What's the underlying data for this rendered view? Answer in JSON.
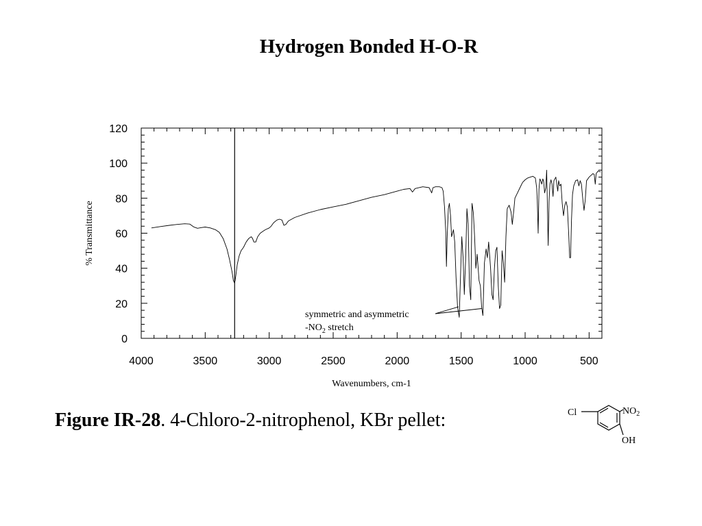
{
  "slide_title": "Hydrogen Bonded H-O-R",
  "caption": {
    "figure_label": "Figure IR-28",
    "text": ".  4-Chloro-2-nitrophenol, KBr pellet:"
  },
  "molecule": {
    "substituent_cl": "Cl",
    "substituent_no2": "NO",
    "substituent_no2_subscript": "2",
    "substituent_oh": "OH"
  },
  "chart_data": {
    "type": "line",
    "xlabel": "Wavenumbers, cm-1",
    "ylabel": "% Transmittance",
    "xlim": [
      4000,
      400
    ],
    "ylim": [
      0,
      120
    ],
    "x_reversed": true,
    "x_ticks": [
      4000,
      3500,
      3000,
      2500,
      2000,
      1500,
      1000,
      500
    ],
    "y_ticks": [
      0,
      20,
      40,
      60,
      80,
      100,
      120
    ],
    "marker_line": {
      "x": 3270
    },
    "annotation": {
      "line1": "symmetric and asymmetric",
      "line2_prefix": "-NO",
      "line2_subscript": "2",
      "line2_suffix": " stretch",
      "arrow_targets": [
        [
          1520,
          18
        ],
        [
          1340,
          17
        ]
      ]
    },
    "series": [
      {
        "points": [
          [
            3920,
            63
          ],
          [
            3850,
            63.8
          ],
          [
            3780,
            64.5
          ],
          [
            3720,
            65
          ],
          [
            3660,
            65.4
          ],
          [
            3620,
            65.2
          ],
          [
            3590,
            63.6
          ],
          [
            3560,
            62.8
          ],
          [
            3530,
            63.2
          ],
          [
            3500,
            63.5
          ],
          [
            3460,
            63
          ],
          [
            3420,
            62
          ],
          [
            3390,
            60.5
          ],
          [
            3360,
            57
          ],
          [
            3330,
            51
          ],
          [
            3310,
            45
          ],
          [
            3290,
            38
          ],
          [
            3280,
            33
          ],
          [
            3270,
            31.5
          ],
          [
            3260,
            36
          ],
          [
            3250,
            42
          ],
          [
            3235,
            47
          ],
          [
            3220,
            50
          ],
          [
            3200,
            52
          ],
          [
            3180,
            55
          ],
          [
            3160,
            57
          ],
          [
            3140,
            58
          ],
          [
            3130,
            57
          ],
          [
            3120,
            55
          ],
          [
            3105,
            55
          ],
          [
            3090,
            58
          ],
          [
            3070,
            60
          ],
          [
            3050,
            61
          ],
          [
            3030,
            62
          ],
          [
            3000,
            63
          ],
          [
            2985,
            64
          ],
          [
            2965,
            66
          ],
          [
            2940,
            67.5
          ],
          [
            2920,
            68
          ],
          [
            2900,
            67.5
          ],
          [
            2885,
            64.5
          ],
          [
            2870,
            65
          ],
          [
            2850,
            67
          ],
          [
            2800,
            69
          ],
          [
            2700,
            71.5
          ],
          [
            2600,
            73.5
          ],
          [
            2500,
            75
          ],
          [
            2400,
            76.5
          ],
          [
            2300,
            78.5
          ],
          [
            2200,
            80.5
          ],
          [
            2100,
            82
          ],
          [
            2000,
            84
          ],
          [
            1950,
            85
          ],
          [
            1900,
            85.5
          ],
          [
            1880,
            83.5
          ],
          [
            1860,
            85.5
          ],
          [
            1800,
            86.5
          ],
          [
            1750,
            86
          ],
          [
            1730,
            83
          ],
          [
            1720,
            86
          ],
          [
            1700,
            86.5
          ],
          [
            1670,
            86.5
          ],
          [
            1650,
            86
          ],
          [
            1640,
            84
          ],
          [
            1630,
            75
          ],
          [
            1620,
            60
          ],
          [
            1615,
            41
          ],
          [
            1608,
            60
          ],
          [
            1600,
            74
          ],
          [
            1592,
            77
          ],
          [
            1583,
            70
          ],
          [
            1575,
            58
          ],
          [
            1560,
            62
          ],
          [
            1550,
            55
          ],
          [
            1540,
            35
          ],
          [
            1528,
            18
          ],
          [
            1515,
            12
          ],
          [
            1505,
            35
          ],
          [
            1495,
            58
          ],
          [
            1485,
            46
          ],
          [
            1475,
            25
          ],
          [
            1465,
            45
          ],
          [
            1455,
            74
          ],
          [
            1445,
            65
          ],
          [
            1435,
            30
          ],
          [
            1425,
            22
          ],
          [
            1415,
            77
          ],
          [
            1405,
            72
          ],
          [
            1395,
            58
          ],
          [
            1385,
            40
          ],
          [
            1375,
            48
          ],
          [
            1360,
            33
          ],
          [
            1350,
            30
          ],
          [
            1340,
            18
          ],
          [
            1330,
            13
          ],
          [
            1318,
            43
          ],
          [
            1305,
            51
          ],
          [
            1295,
            46
          ],
          [
            1285,
            55
          ],
          [
            1270,
            40
          ],
          [
            1260,
            25
          ],
          [
            1250,
            22
          ],
          [
            1240,
            40
          ],
          [
            1230,
            50
          ],
          [
            1220,
            52
          ],
          [
            1210,
            30
          ],
          [
            1200,
            17
          ],
          [
            1190,
            19
          ],
          [
            1180,
            50
          ],
          [
            1170,
            43
          ],
          [
            1160,
            32
          ],
          [
            1150,
            58
          ],
          [
            1140,
            74
          ],
          [
            1125,
            76
          ],
          [
            1110,
            72
          ],
          [
            1100,
            65
          ],
          [
            1090,
            72
          ],
          [
            1080,
            80
          ],
          [
            1060,
            83
          ],
          [
            1040,
            86
          ],
          [
            1020,
            89
          ],
          [
            1000,
            90.5
          ],
          [
            980,
            91.5
          ],
          [
            960,
            92
          ],
          [
            940,
            92.5
          ],
          [
            920,
            91.5
          ],
          [
            910,
            86
          ],
          [
            905,
            79
          ],
          [
            898,
            60
          ],
          [
            892,
            85
          ],
          [
            885,
            91
          ],
          [
            878,
            90
          ],
          [
            870,
            88
          ],
          [
            862,
            91
          ],
          [
            855,
            89.5
          ],
          [
            848,
            83
          ],
          [
            838,
            86
          ],
          [
            832,
            96
          ],
          [
            826,
            76
          ],
          [
            820,
            53
          ],
          [
            813,
            78
          ],
          [
            806,
            88
          ],
          [
            798,
            90.5
          ],
          [
            790,
            88
          ],
          [
            782,
            81
          ],
          [
            775,
            90
          ],
          [
            760,
            92
          ],
          [
            745,
            84
          ],
          [
            738,
            90
          ],
          [
            730,
            87
          ],
          [
            720,
            88
          ],
          [
            710,
            77
          ],
          [
            700,
            70
          ],
          [
            690,
            76
          ],
          [
            680,
            78
          ],
          [
            670,
            75
          ],
          [
            660,
            60
          ],
          [
            652,
            46
          ],
          [
            645,
            46
          ],
          [
            638,
            67
          ],
          [
            630,
            82
          ],
          [
            620,
            87
          ],
          [
            605,
            90
          ],
          [
            590,
            90.5
          ],
          [
            580,
            87
          ],
          [
            570,
            90
          ],
          [
            560,
            88
          ],
          [
            550,
            80
          ],
          [
            540,
            73
          ],
          [
            530,
            79
          ],
          [
            520,
            90
          ],
          [
            510,
            91
          ],
          [
            500,
            92
          ],
          [
            485,
            93
          ],
          [
            470,
            94
          ],
          [
            460,
            93.5
          ],
          [
            452,
            88
          ],
          [
            445,
            94
          ],
          [
            430,
            95.5
          ],
          [
            410,
            95
          ]
        ]
      }
    ]
  }
}
